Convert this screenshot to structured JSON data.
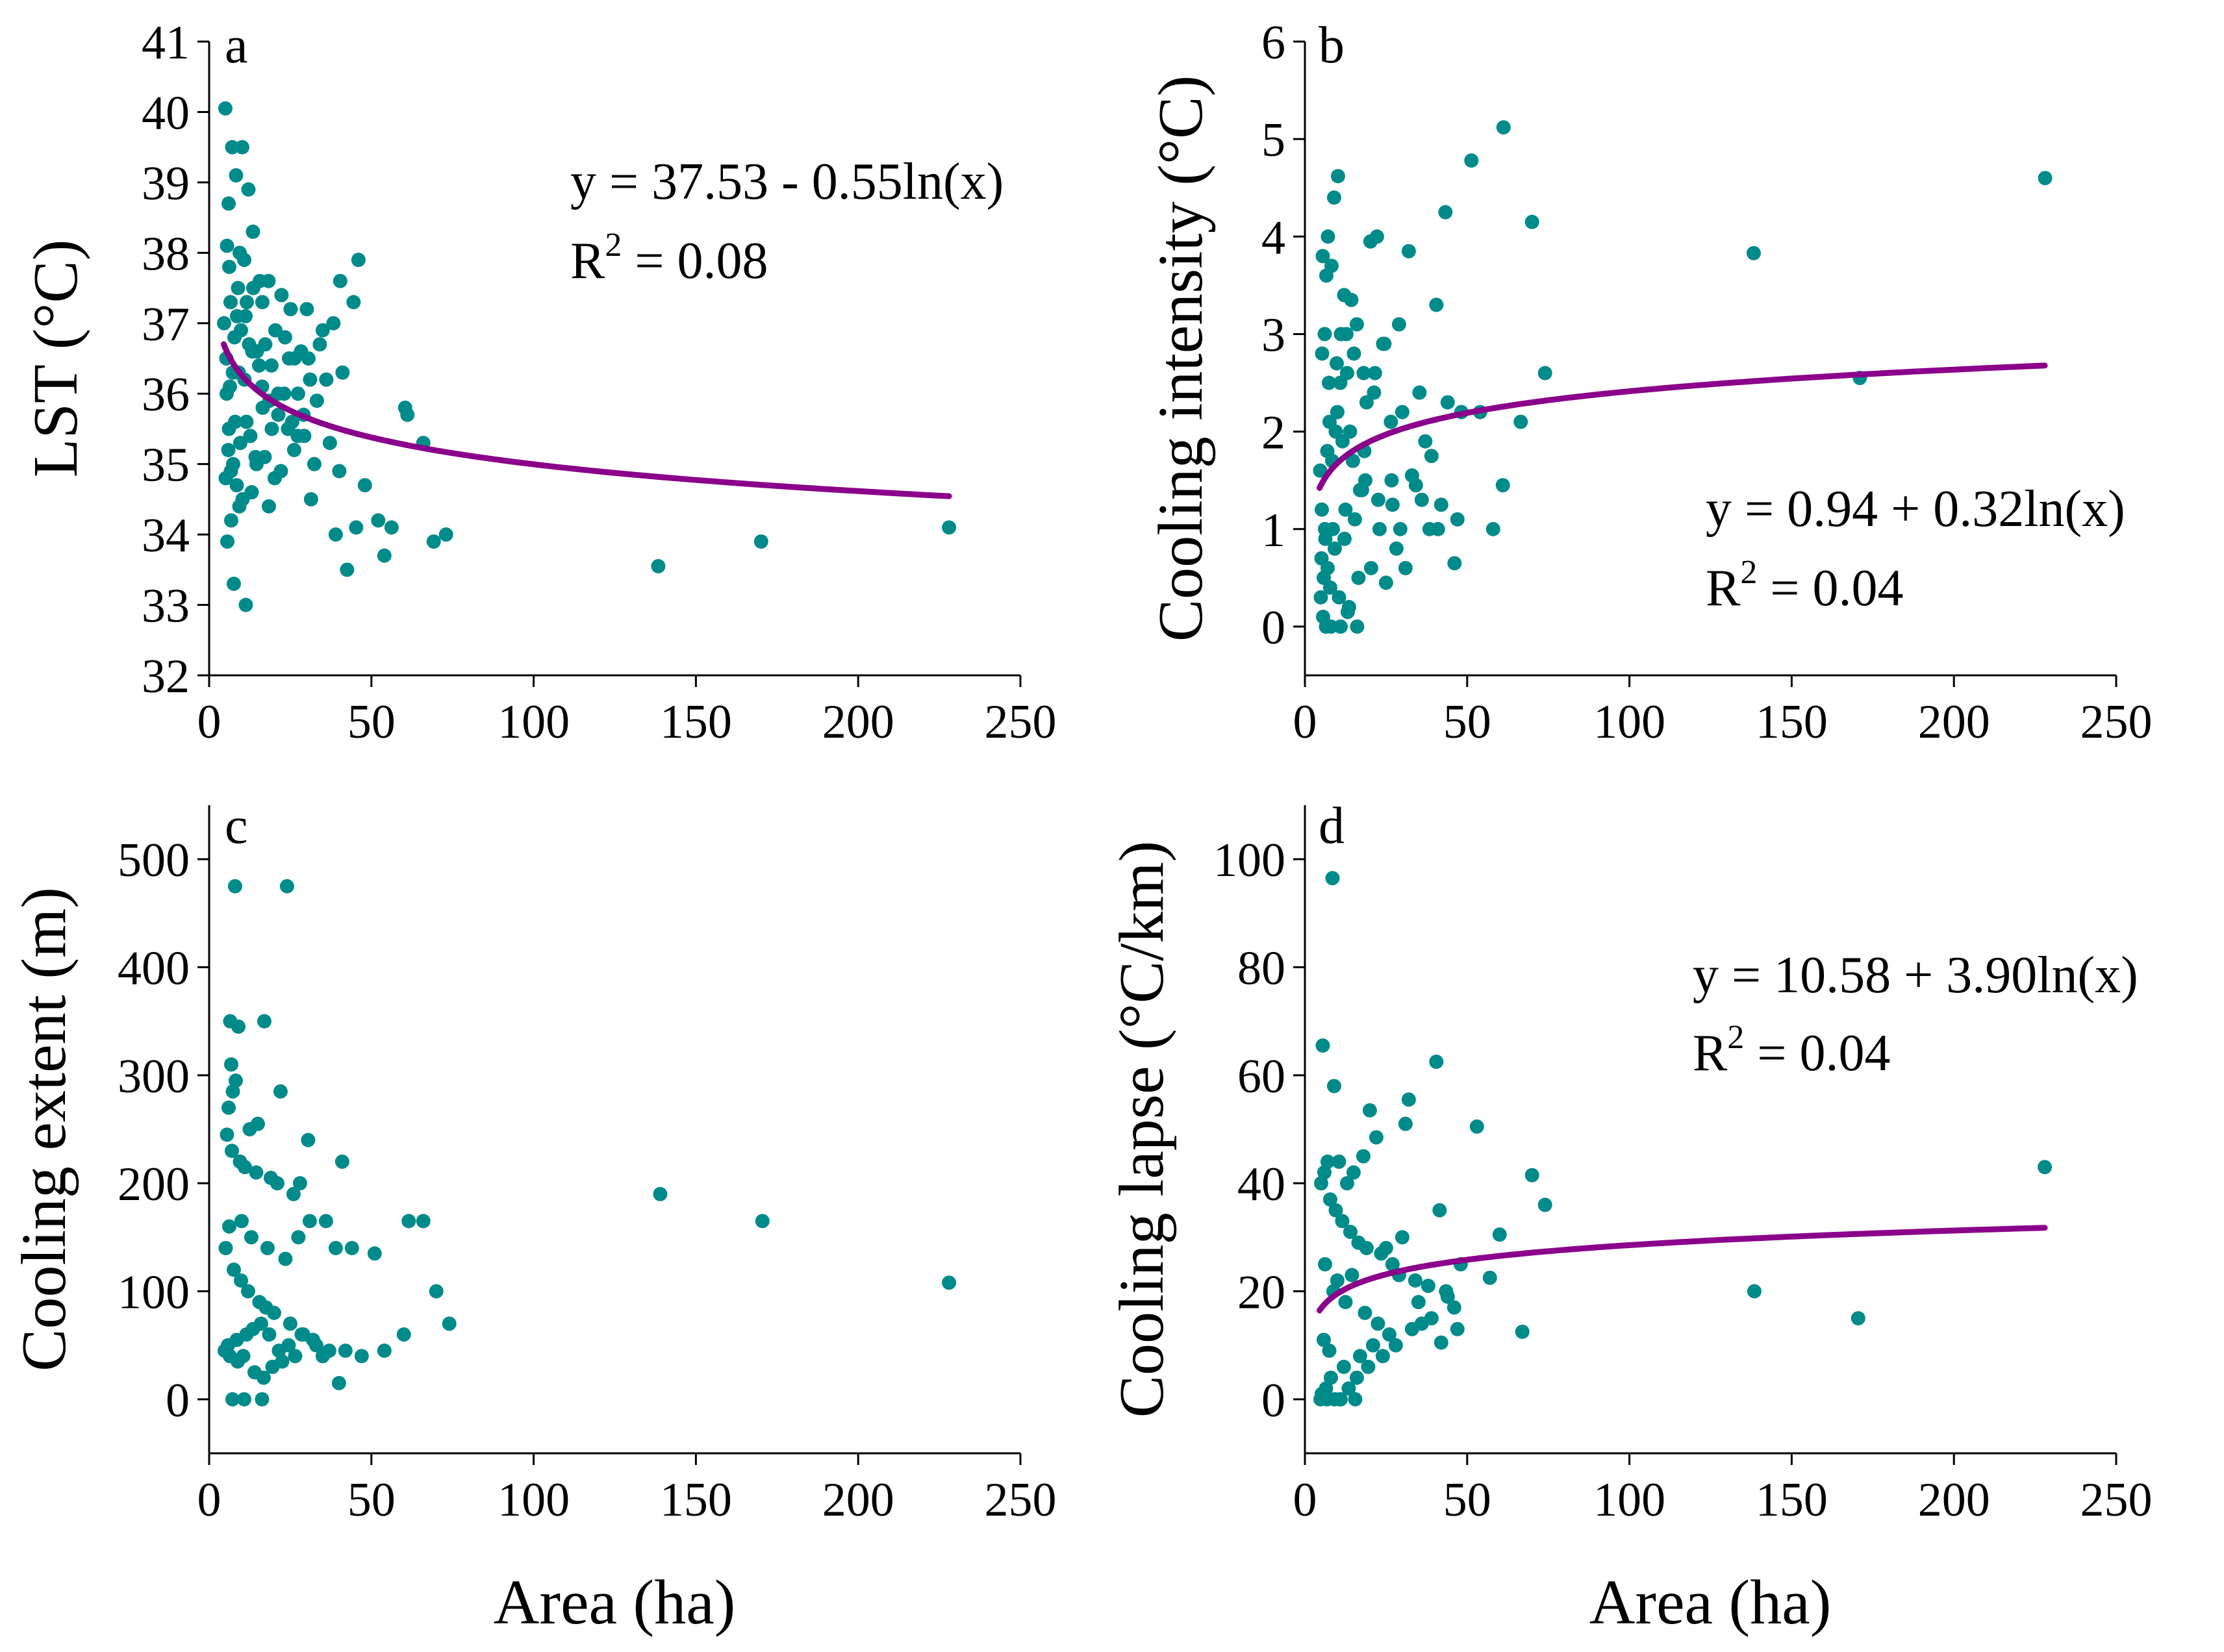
{
  "colors": {
    "point": "#008B8B",
    "fit": "#8B008B"
  },
  "chart_data": [
    {
      "type": "scatter",
      "panel": "a",
      "xlabel": "",
      "ylabel": "LST (°C)",
      "xlim": [
        0,
        250
      ],
      "ylim": [
        32,
        41
      ],
      "xticks": [
        0,
        50,
        100,
        150,
        200,
        250
      ],
      "yticks": [
        32,
        33,
        34,
        35,
        36,
        37,
        38,
        39,
        40,
        41
      ],
      "equation": "y = 37.53 - 0.55ln(x)",
      "r2_prefix": "R",
      "r2_exp": "2",
      "r2_value": " = 0.08",
      "fit": {
        "a": 37.53,
        "b": -0.55,
        "xmin": 4.5,
        "xmax": 228
      },
      "x": [
        5.0,
        7.1,
        10.2,
        8.3,
        6.0,
        12.1,
        13.5,
        9.4,
        22.3,
        25.1,
        15.6,
        10.8,
        5.5,
        6.6,
        4.6,
        8.9,
        11.2,
        16.4,
        18.3,
        20.4,
        5.3,
        7.8,
        13.3,
        9.1,
        6.4,
        10.9,
        14.7,
        17.3,
        19.2,
        24.6,
        28.3,
        31.1,
        35.0,
        38.3,
        41.1,
        44.5,
        46.0,
        40.4,
        30.1,
        26.3,
        23.4,
        21.3,
        27.4,
        33.2,
        36.1,
        29.1,
        16.5,
        11.5,
        8.0,
        6.1,
        5.9,
        7.4,
        9.6,
        12.7,
        14.3,
        6.7,
        5.1,
        8.5,
        10.3,
        13.1,
        18.4,
        22.1,
        26.2,
        31.4,
        37.2,
        39.0,
        40.1,
        45.3,
        48.0,
        52.1,
        56.2,
        61.1,
        66.0,
        69.2,
        73.0,
        60.4,
        54.0,
        138.4,
        170.1,
        228.0,
        42.5,
        11.3,
        7.6,
        5.6,
        6.8,
        9.3,
        14.6,
        17.1,
        20.2,
        23.1,
        25.6,
        29.3,
        32.4,
        19.3,
        15.4,
        12.3,
        8.6,
        6.2,
        5.4,
        7.3,
        9.8,
        11.6,
        13.6,
        16.3,
        18.6,
        21.3,
        24.3,
        27.3,
        30.6,
        34.1
      ],
      "y": [
        40.05,
        39.5,
        39.5,
        39.1,
        38.7,
        38.9,
        38.3,
        38.0,
        37.4,
        37.2,
        37.6,
        37.9,
        38.1,
        37.3,
        37.0,
        37.5,
        37.1,
        37.3,
        37.6,
        36.9,
        36.5,
        36.8,
        36.6,
        36.3,
        36.1,
        36.2,
        36.6,
        36.7,
        36.4,
        36.5,
        36.6,
        36.2,
        36.9,
        37.0,
        36.3,
        37.3,
        37.9,
        37.6,
        37.2,
        36.5,
        36.8,
        36.0,
        36.0,
        35.9,
        36.2,
        35.7,
        35.8,
        35.6,
        35.6,
        35.5,
        35.2,
        35.0,
        35.3,
        35.4,
        35.1,
        34.9,
        34.8,
        34.7,
        34.5,
        34.6,
        34.4,
        34.9,
        35.2,
        34.5,
        35.3,
        34.0,
        34.9,
        34.1,
        34.7,
        34.2,
        34.1,
        35.7,
        35.3,
        33.9,
        34.0,
        35.8,
        33.7,
        33.55,
        33.9,
        34.1,
        33.5,
        33.0,
        33.3,
        33.9,
        34.2,
        34.4,
        35.0,
        35.1,
        34.8,
        36.0,
        35.6,
        35.4,
        35.0,
        35.5,
        36.4,
        36.7,
        37.1,
        37.8,
        36.0,
        36.3,
        36.9,
        37.3,
        37.5,
        36.1,
        35.9,
        35.7,
        35.5,
        35.4,
        36.5,
        36.7
      ]
    },
    {
      "type": "scatter",
      "panel": "b",
      "xlabel": "",
      "ylabel": "Cooling intensity (°C)",
      "xlim": [
        0,
        250
      ],
      "ylim": [
        -0.5,
        6
      ],
      "xticks": [
        0,
        50,
        100,
        150,
        200,
        250
      ],
      "yticks": [
        0,
        1,
        2,
        3,
        4,
        5,
        6
      ],
      "equation": "y = 0.94 + 0.32ln(x)",
      "r2_prefix": "R",
      "r2_exp": "2",
      "r2_value": " = 0.04",
      "fit": {
        "a": 0.94,
        "b": 0.32,
        "xmin": 4.5,
        "xmax": 228
      },
      "x": [
        61.2,
        51.3,
        10.2,
        138.3,
        228.1,
        70.0,
        43.3,
        20.2,
        22.2,
        32.0,
        7.1,
        9.0,
        8.2,
        5.5,
        6.6,
        12.1,
        14.3,
        16.0,
        40.5,
        29.0,
        35.3,
        24.5,
        18.1,
        11.1,
        6.1,
        5.3,
        7.4,
        9.8,
        13.0,
        15.1,
        19.0,
        21.3,
        26.5,
        30.0,
        37.1,
        44.0,
        48.2,
        54.0,
        66.5,
        74.0,
        171.0,
        61.0,
        58.0,
        47.0,
        41.0,
        39.0,
        33.0,
        27.0,
        23.0,
        17.0,
        12.5,
        8.6,
        6.3,
        5.1,
        5.8,
        7.8,
        10.5,
        13.6,
        16.5,
        20.4,
        25.0,
        28.2,
        31.0,
        36.0,
        42.0,
        46.1,
        4.7,
        6.9,
        9.5,
        11.6,
        14.8,
        18.6,
        22.6,
        11.0,
        8.0,
        6.5,
        5.6,
        4.9,
        7.0,
        9.2,
        12.2,
        15.4,
        17.6,
        16.1,
        13.2,
        10.0,
        7.6,
        5.2,
        6.2,
        8.4,
        10.9,
        13.9,
        18.3,
        21.6,
        24.1,
        26.7,
        29.4,
        34.2,
        38.4,
        12.8
      ],
      "y": [
        5.12,
        4.78,
        4.62,
        3.83,
        4.6,
        4.15,
        4.25,
        3.95,
        4.0,
        3.85,
        4.0,
        4.4,
        3.7,
        3.8,
        3.6,
        3.4,
        3.35,
        3.1,
        3.3,
        3.1,
        2.4,
        2.9,
        2.6,
        3.0,
        3.0,
        2.8,
        2.5,
        2.7,
        2.6,
        2.8,
        2.3,
        2.4,
        2.1,
        2.2,
        1.9,
        2.3,
        2.2,
        2.2,
        2.1,
        2.6,
        2.55,
        1.45,
        1.0,
        1.1,
        1.0,
        1.75,
        1.55,
        1.25,
        1.0,
        1.4,
        1.2,
        1.0,
        0.9,
        0.7,
        0.5,
        0.4,
        0.3,
        0.2,
        0.5,
        0.6,
        0.45,
        0.8,
        0.6,
        1.3,
        1.25,
        0.65,
        1.6,
        1.8,
        2.0,
        1.9,
        1.7,
        1.5,
        1.3,
        0.0,
        0.0,
        0.0,
        0.1,
        0.3,
        0.6,
        0.8,
        0.9,
        1.1,
        1.4,
        0.0,
        0.15,
        2.2,
        2.1,
        1.2,
        1.0,
        1.7,
        2.5,
        2.0,
        1.8,
        2.6,
        2.9,
        1.5,
        1.0,
        1.45,
        1.0,
        3.0
      ]
    },
    {
      "type": "scatter",
      "panel": "c",
      "xlabel": "Area (ha)",
      "ylabel": "Cooling extent (m)",
      "xlim": [
        0,
        250
      ],
      "ylim": [
        -50,
        550
      ],
      "xticks": [
        0,
        50,
        100,
        150,
        200,
        250
      ],
      "yticks": [
        0,
        100,
        200,
        300,
        400,
        500
      ],
      "equation": "",
      "r2_prefix": "",
      "r2_exp": "",
      "r2_value": "",
      "fit": null,
      "x": [
        8.0,
        24.0,
        6.5,
        9.0,
        17.0,
        6.8,
        8.2,
        7.3,
        6.0,
        22.0,
        15.0,
        12.5,
        5.5,
        7.0,
        9.5,
        11.0,
        14.5,
        19.0,
        21.0,
        28.0,
        30.5,
        41.0,
        26.0,
        36.0,
        39.0,
        44.0,
        51.0,
        60.0,
        66.0,
        70.0,
        74.0,
        61.5,
        54.0,
        139.0,
        170.5,
        228.0,
        31.0,
        27.5,
        23.5,
        18.0,
        13.0,
        10.0,
        6.2,
        5.1,
        7.6,
        9.8,
        12.0,
        15.5,
        17.5,
        20.0,
        25.0,
        29.0,
        33.0,
        37.0,
        42.0,
        47.0,
        40.0,
        35.0,
        32.0,
        28.5,
        24.5,
        21.5,
        18.5,
        16.0,
        13.5,
        11.5,
        8.5,
        5.8,
        4.8,
        6.4,
        8.8,
        10.5,
        14.0,
        16.8,
        19.5,
        22.5,
        26.5,
        7.2,
        10.8,
        16.3
      ],
      "y": [
        475,
        475,
        350,
        345,
        350,
        310,
        295,
        285,
        270,
        285,
        255,
        250,
        245,
        230,
        220,
        215,
        210,
        205,
        200,
        200,
        240,
        220,
        190,
        165,
        140,
        140,
        135,
        60,
        165,
        100,
        70,
        165,
        45,
        190,
        165,
        108,
        165,
        150,
        130,
        140,
        150,
        165,
        160,
        140,
        120,
        110,
        100,
        90,
        85,
        80,
        70,
        60,
        50,
        45,
        45,
        40,
        15,
        40,
        55,
        60,
        50,
        45,
        60,
        70,
        65,
        60,
        55,
        50,
        45,
        40,
        35,
        40,
        25,
        20,
        30,
        35,
        40,
        0,
        0,
        0
      ]
    },
    {
      "type": "scatter",
      "panel": "d",
      "xlabel": "Area (ha)",
      "ylabel": "Cooling lapse (°C/km)",
      "xlim": [
        0,
        250
      ],
      "ylim": [
        -10,
        110
      ],
      "xticks": [
        0,
        50,
        100,
        150,
        200,
        250
      ],
      "yticks": [
        0,
        20,
        40,
        60,
        80,
        100
      ],
      "equation": "y = 10.58 + 3.90ln(x)",
      "r2_prefix": "R",
      "r2_exp": "2",
      "r2_value": " = 0.04",
      "fit": {
        "a": 10.58,
        "b": 3.9,
        "xmin": 4.5,
        "xmax": 228
      },
      "x": [
        8.5,
        5.5,
        9.0,
        40.5,
        20.0,
        32.0,
        53.0,
        41.5,
        31.0,
        70.0,
        74.0,
        228.0,
        138.5,
        170.5,
        67.0,
        46.0,
        60.0,
        30.0,
        25.0,
        22.0,
        18.0,
        15.0,
        13.0,
        10.5,
        7.0,
        6.0,
        5.0,
        7.8,
        9.5,
        11.5,
        14.0,
        16.5,
        19.0,
        23.5,
        27.0,
        29.0,
        34.0,
        38.0,
        44.0,
        48.0,
        57.0,
        42.0,
        36.0,
        26.0,
        21.0,
        17.0,
        12.0,
        8.0,
        6.5,
        5.2,
        4.8,
        6.8,
        9.2,
        11.0,
        13.5,
        16.0,
        19.5,
        24.0,
        28.0,
        33.0,
        39.0,
        47.0,
        43.5,
        35.0,
        12.5,
        8.8,
        6.2,
        10.0,
        14.5,
        18.5,
        22.5,
        5.8,
        7.5,
        10.8,
        15.5
      ],
      "y": [
        96.5,
        65.5,
        58.0,
        62.5,
        53.5,
        55.5,
        50.5,
        35.0,
        51.0,
        41.5,
        36.0,
        43.0,
        20.0,
        15.0,
        12.5,
        17.0,
        30.5,
        30.0,
        28.0,
        48.5,
        45.0,
        42.0,
        40.0,
        44.0,
        44.0,
        42.0,
        40.0,
        37.0,
        35.0,
        33.0,
        31.0,
        29.0,
        28.0,
        27.0,
        25.0,
        23.0,
        22.0,
        21.0,
        19.0,
        25.0,
        22.5,
        10.5,
        14.0,
        12.0,
        10.0,
        8.0,
        6.0,
        4.0,
        2.0,
        1.0,
        0.0,
        0.0,
        0.0,
        0.0,
        2.0,
        4.0,
        6.0,
        8.0,
        10.0,
        13.0,
        15.0,
        13.0,
        20.0,
        18.0,
        18.0,
        20.0,
        25.0,
        22.0,
        23.0,
        16.0,
        14.0,
        11.0,
        9.0,
        0.0,
        0.0
      ]
    }
  ]
}
